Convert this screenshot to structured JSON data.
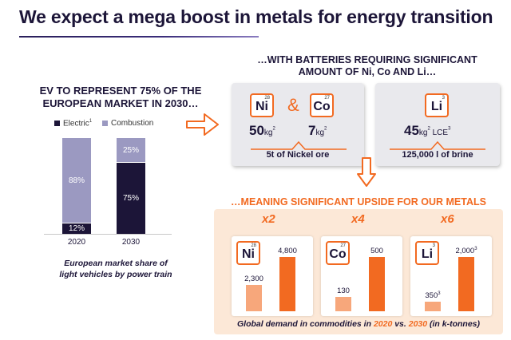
{
  "title": "We expect a mega boost in metals for energy transition",
  "left": {
    "heading_line1": "EV TO REPRESENT 75% OF THE",
    "heading_line2": "EUROPEAN MARKET IN 2030…",
    "legend": {
      "electric": "Electric",
      "electric_sup": "1",
      "combustion": "Combustion"
    },
    "bars": [
      {
        "year": "2020",
        "electric_label": "12%",
        "combustion_label": "88%",
        "electric_pct": 12,
        "combustion_pct": 88
      },
      {
        "year": "2030",
        "electric_label": "75%",
        "combustion_label": "25%",
        "electric_pct": 75,
        "combustion_pct": 25
      }
    ],
    "caption_line1": "European market share of",
    "caption_line2": "light vehicles by power train"
  },
  "right_top": {
    "heading_line1": "…WITH BATTERIES REQUIRING SIGNIFICANT",
    "heading_line2": "AMOUNT OF Ni, Co AND Li…",
    "ampersand": "&",
    "ni": {
      "symbol": "Ni",
      "number": "28",
      "value": "50",
      "unit": "kg",
      "sup": "2"
    },
    "co": {
      "symbol": "Co",
      "number": "27",
      "value": "7",
      "unit": "kg",
      "sup": "2"
    },
    "li": {
      "symbol": "Li",
      "number": "3",
      "value": "45",
      "unit": "kg",
      "sup": "2",
      "suffix": " LCE",
      "suffix_sup": "3"
    },
    "nickel_caption": "5t of Nickel ore",
    "brine_caption": "125,000 l of brine"
  },
  "right_bottom": {
    "heading": "…MEANING SIGNIFICANT UPSIDE FOR OUR METALS",
    "metals": [
      {
        "symbol": "Ni",
        "number": "28",
        "multiplier": "x2",
        "v2020": "2,300",
        "v2020_sup": "",
        "v2030": "4,800",
        "v2030_sup": "",
        "val2020": 2300,
        "val2030": 4800
      },
      {
        "symbol": "Co",
        "number": "27",
        "multiplier": "x4",
        "v2020": "130",
        "v2020_sup": "",
        "v2030": "500",
        "v2030_sup": "",
        "val2020": 130,
        "val2030": 500
      },
      {
        "symbol": "Li",
        "number": "3",
        "multiplier": "x6",
        "v2020": "350",
        "v2020_sup": "3",
        "v2030": "2,000",
        "v2030_sup": "3",
        "val2020": 350,
        "val2030": 2000
      }
    ],
    "caption_pre": "Global demand in commodities in ",
    "caption_y1": "2020",
    "caption_mid": " vs. ",
    "caption_y2": "2030",
    "caption_post": " (in k-tonnes)"
  },
  "colors": {
    "electric": "#1c1538",
    "combustion": "#9b99c1",
    "orange": "#f26a21",
    "light_orange": "#f7a77b"
  }
}
